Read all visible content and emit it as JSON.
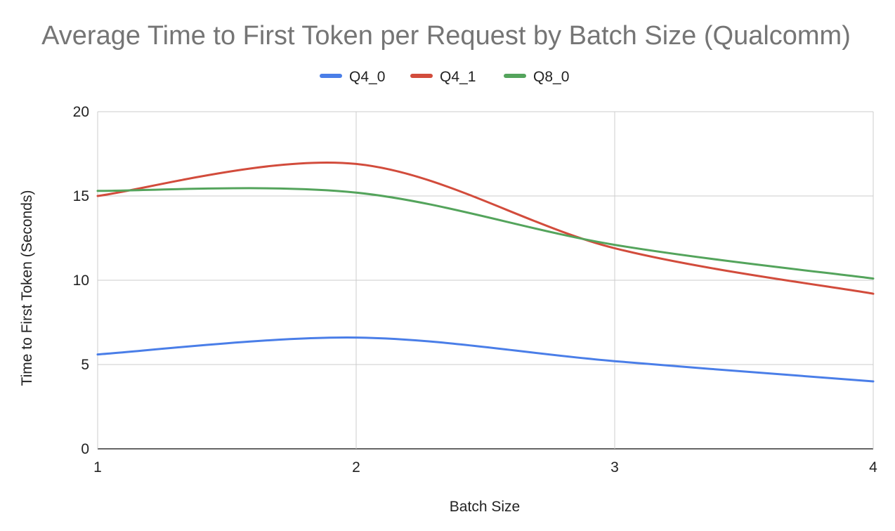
{
  "chart_data": {
    "type": "line",
    "title": "Average Time to First Token per Request by Batch Size (Qualcomm)",
    "xlabel": "Batch Size",
    "ylabel": "Time to First Token (Seconds)",
    "x": [
      1,
      2,
      3,
      4
    ],
    "xlim": [
      1,
      4
    ],
    "ylim": [
      0,
      20
    ],
    "x_ticks": [
      "1",
      "2",
      "3",
      "4"
    ],
    "y_ticks": [
      "0",
      "5",
      "10",
      "15",
      "20"
    ],
    "grid": true,
    "smooth": true,
    "legend_position": "top",
    "series": [
      {
        "name": "Q4_0",
        "color": "#4a7ee8",
        "values": [
          5.6,
          6.6,
          5.2,
          4.0
        ]
      },
      {
        "name": "Q4_1",
        "color": "#d24c3c",
        "values": [
          15.0,
          16.9,
          11.9,
          9.2
        ]
      },
      {
        "name": "Q8_0",
        "color": "#54a45c",
        "values": [
          15.3,
          15.2,
          12.1,
          10.1
        ]
      }
    ]
  }
}
